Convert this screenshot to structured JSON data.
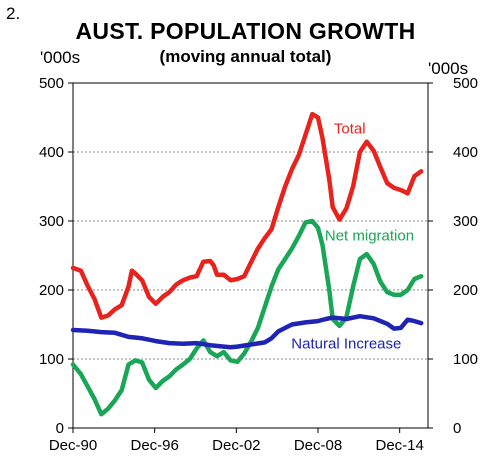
{
  "figure_number": "2.",
  "chart_data": {
    "type": "line",
    "title": "AUST. POPULATION GROWTH",
    "subtitle": "(moving annual total)",
    "ylabel_left": "'000s",
    "ylabel_right": "'000s",
    "ylim": [
      0,
      500
    ],
    "yticks": [
      0,
      100,
      200,
      300,
      400,
      500
    ],
    "xlim": [
      1990.92,
      2017.0
    ],
    "xticks": [
      {
        "label": "Dec-90",
        "value": 1990.92
      },
      {
        "label": "Dec-96",
        "value": 1996.92
      },
      {
        "label": "Dec-02",
        "value": 2002.92
      },
      {
        "label": "Dec-08",
        "value": 2008.92
      },
      {
        "label": "Dec-14",
        "value": 2014.92
      }
    ],
    "grid": true,
    "series": [
      {
        "name": "Total",
        "color": "#e8231e",
        "x": [
          1990.92,
          1991.5,
          1992.0,
          1992.5,
          1993.0,
          1993.5,
          1994.0,
          1994.5,
          1995.0,
          1995.25,
          1995.5,
          1995.75,
          1996.0,
          1996.5,
          1997.0,
          1997.5,
          1998.0,
          1998.5,
          1999.0,
          1999.5,
          2000.0,
          2000.5,
          2001.0,
          2001.25,
          2001.5,
          2002.0,
          2002.5,
          2003.0,
          2003.5,
          2004.0,
          2004.5,
          2005.0,
          2005.5,
          2006.0,
          2006.5,
          2007.0,
          2007.5,
          2008.0,
          2008.5,
          2008.92,
          2009.25,
          2009.75,
          2010.0,
          2010.5,
          2011.0,
          2011.5,
          2012.0,
          2012.5,
          2013.0,
          2013.5,
          2014.0,
          2014.5,
          2015.0,
          2015.5,
          2016.0,
          2016.5
        ],
        "values": [
          232,
          228,
          206,
          187,
          160,
          163,
          172,
          178,
          205,
          228,
          224,
          219,
          214,
          190,
          180,
          190,
          197,
          208,
          214,
          218,
          220,
          241,
          242,
          236,
          222,
          222,
          214,
          216,
          220,
          240,
          260,
          275,
          288,
          320,
          350,
          375,
          395,
          425,
          455,
          450,
          420,
          360,
          320,
          302,
          318,
          350,
          400,
          415,
          402,
          378,
          355,
          348,
          345,
          340,
          365,
          372
        ]
      },
      {
        "name": "Net migration",
        "color": "#19a657",
        "x": [
          1990.92,
          1991.5,
          1992.0,
          1992.5,
          1993.0,
          1993.5,
          1994.0,
          1994.5,
          1995.0,
          1995.5,
          1996.0,
          1996.5,
          1997.0,
          1997.5,
          1998.0,
          1998.5,
          1999.0,
          1999.5,
          2000.0,
          2000.5,
          2001.0,
          2001.5,
          2002.0,
          2002.5,
          2003.0,
          2003.5,
          2004.0,
          2004.5,
          2005.0,
          2005.5,
          2006.0,
          2006.5,
          2007.0,
          2007.5,
          2008.0,
          2008.5,
          2008.92,
          2009.25,
          2009.75,
          2010.0,
          2010.5,
          2011.0,
          2011.5,
          2012.0,
          2012.5,
          2013.0,
          2013.5,
          2014.0,
          2014.5,
          2015.0,
          2015.5,
          2016.0,
          2016.5
        ],
        "values": [
          92,
          78,
          60,
          42,
          20,
          28,
          40,
          55,
          92,
          98,
          95,
          70,
          58,
          68,
          75,
          85,
          92,
          100,
          115,
          127,
          110,
          104,
          110,
          98,
          96,
          108,
          125,
          145,
          175,
          205,
          230,
          245,
          260,
          278,
          298,
          300,
          290,
          265,
          200,
          158,
          148,
          160,
          205,
          245,
          252,
          238,
          212,
          197,
          193,
          193,
          200,
          216,
          220
        ]
      },
      {
        "name": "Natural Increase",
        "color": "#1f24b5",
        "x": [
          1990.92,
          1992.0,
          1993.0,
          1994.0,
          1995.0,
          1996.0,
          1997.0,
          1998.0,
          1999.0,
          2000.0,
          2001.0,
          2002.0,
          2002.5,
          2003.0,
          2004.0,
          2005.0,
          2005.5,
          2006.0,
          2007.0,
          2008.0,
          2008.92,
          2009.5,
          2010.0,
          2010.5,
          2011.0,
          2012.0,
          2013.0,
          2014.0,
          2014.5,
          2015.0,
          2015.5,
          2016.0,
          2016.5
        ],
        "values": [
          142,
          141,
          139,
          138,
          132,
          130,
          126,
          123,
          122,
          123,
          120,
          118,
          117,
          118,
          121,
          124,
          130,
          140,
          150,
          153,
          155,
          158,
          160,
          159,
          158,
          162,
          159,
          151,
          144,
          145,
          157,
          155,
          152
        ]
      }
    ],
    "annotations": [
      {
        "text": "Total",
        "series": "Total",
        "x": 2011.25,
        "y": 427
      },
      {
        "text": "Net migration",
        "series": "Net migration",
        "x": 2012.7,
        "y": 272
      },
      {
        "text": "Natural Increase",
        "series": "Natural Increase",
        "x": 2011.0,
        "y": 115
      }
    ]
  }
}
